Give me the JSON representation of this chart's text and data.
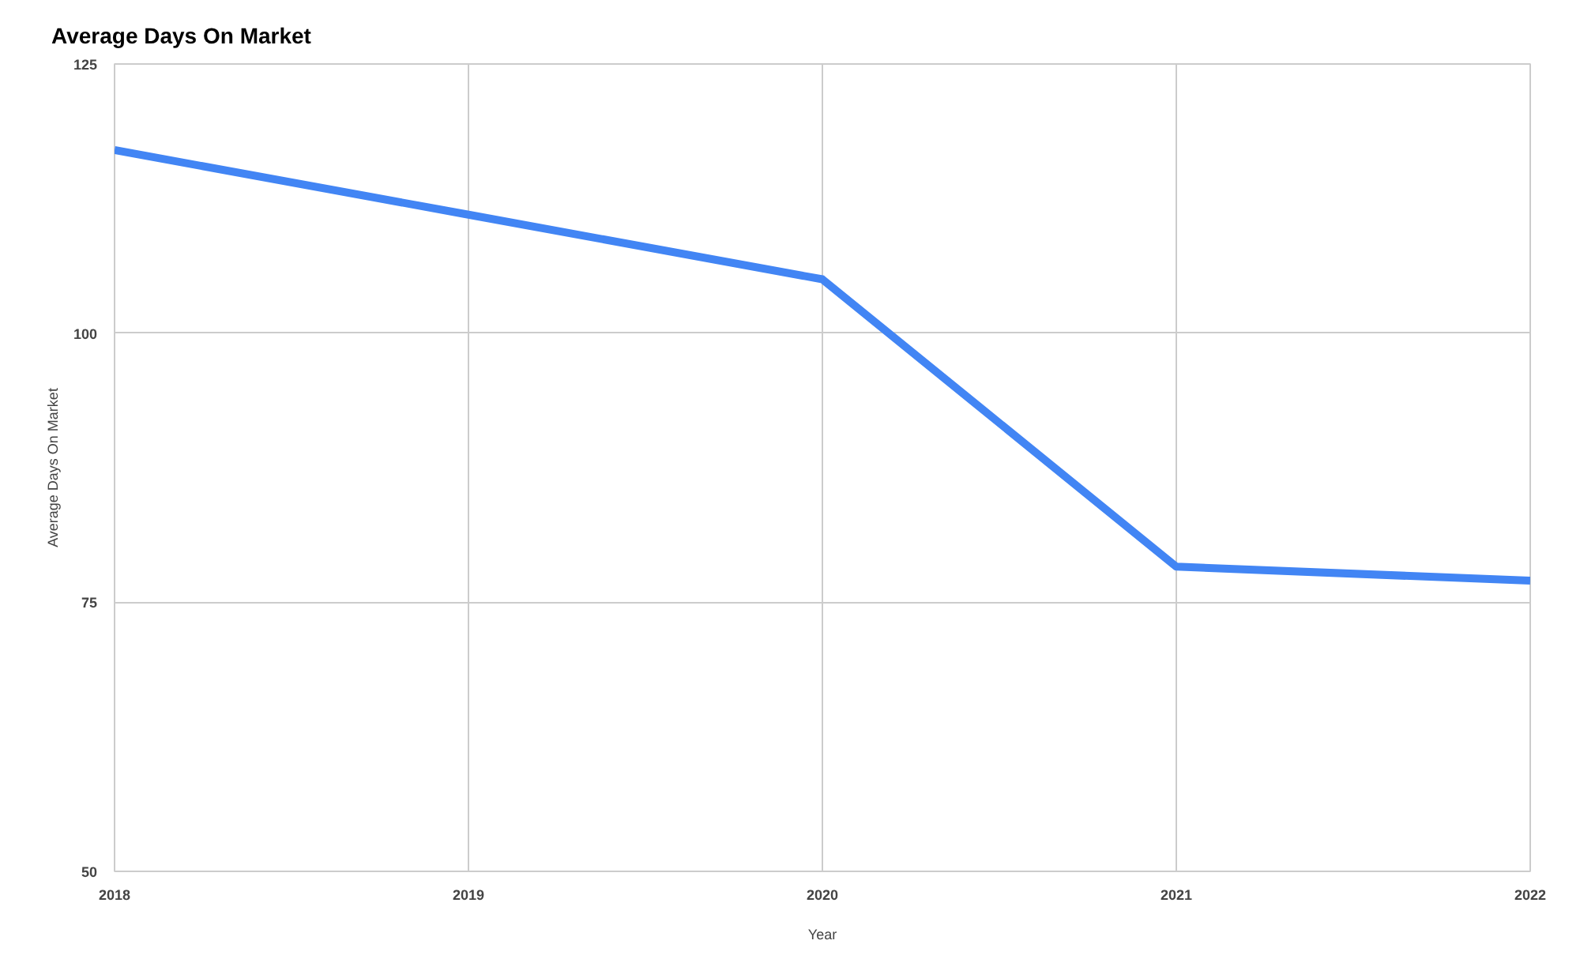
{
  "chart_data": {
    "type": "line",
    "title": "Average Days On Market",
    "xlabel": "Year",
    "ylabel": "Average Days On Market",
    "x": [
      2018,
      2019,
      2020,
      2021,
      2022
    ],
    "series": [
      {
        "color": "#4285f4",
        "values": [
          117,
          111,
          105,
          78.3,
          77
        ]
      }
    ],
    "xlim": [
      2018,
      2022
    ],
    "xticks": [
      2018,
      2019,
      2020,
      2021,
      2022
    ],
    "ylim": [
      50,
      125
    ],
    "yticks": [
      50,
      75,
      100,
      125
    ],
    "grid": true,
    "marker": "none",
    "line_style": "solid"
  }
}
